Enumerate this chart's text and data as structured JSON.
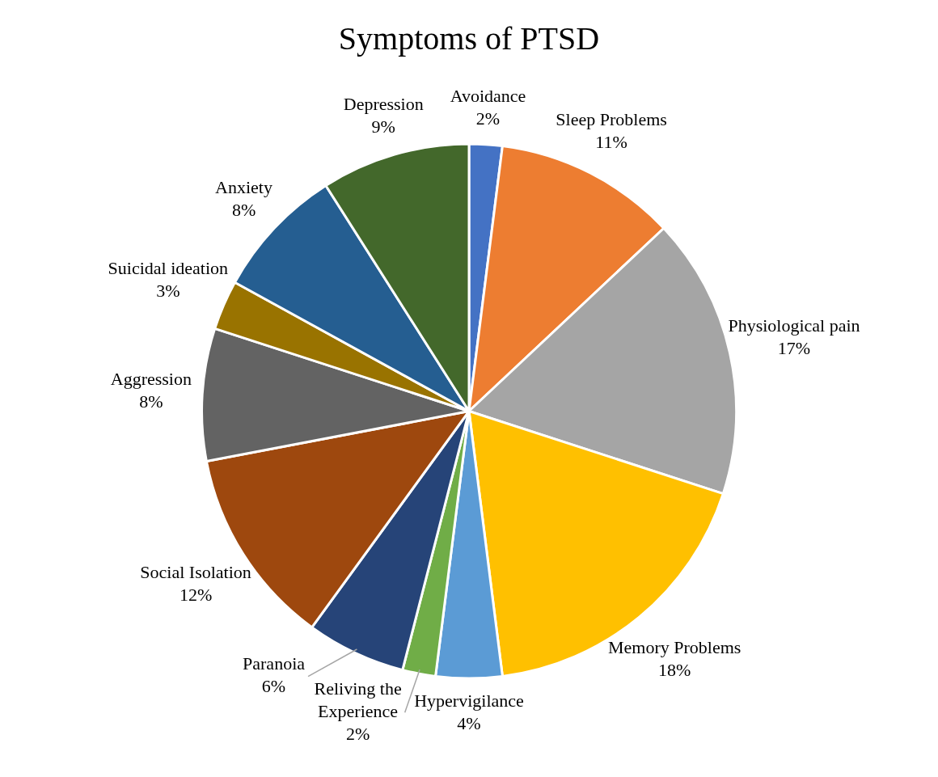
{
  "chart_data": {
    "type": "pie",
    "title": "Symptoms of PTSD",
    "categories": [
      "Avoidance",
      "Sleep Problems",
      "Physiological pain",
      "Memory Problems",
      "Hypervigilance",
      "Reliving the Experience",
      "Paranoia",
      "Social Isolation",
      "Aggression",
      "Suicidal ideation",
      "Anxiety",
      "Depression"
    ],
    "values": [
      2,
      11,
      17,
      18,
      4,
      2,
      6,
      12,
      8,
      3,
      8,
      9
    ],
    "colors": [
      "#4472c4",
      "#ed7d31",
      "#a5a5a5",
      "#ffc000",
      "#5b9bd5",
      "#70ad47",
      "#264478",
      "#9e480e",
      "#636363",
      "#997300",
      "#255e91",
      "#43682b"
    ],
    "value_labels": [
      "2%",
      "11%",
      "17%",
      "18%",
      "4%",
      "2%",
      "6%",
      "12%",
      "8%",
      "3%",
      "8%",
      "9%"
    ],
    "legend": false
  }
}
